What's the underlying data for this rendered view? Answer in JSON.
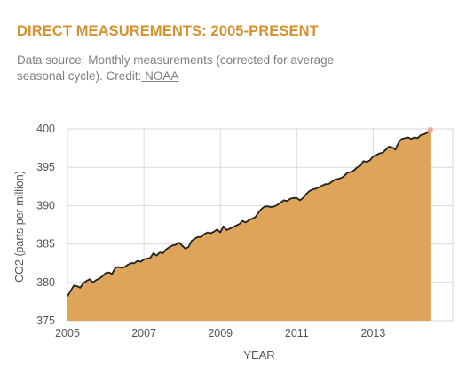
{
  "header": {
    "title": "DIRECT MEASUREMENTS: 2005-PRESENT",
    "subtitle_text": "Data source: Monthly measurements (corrected for average seasonal cycle). Credit:",
    "credit_link": " NOAA"
  },
  "colors": {
    "title": "#d4912e",
    "area_fill": "#dda45a",
    "line": "#222222",
    "grid": "#d9d9d9",
    "last_point": "#f2a0a0"
  },
  "chart_data": {
    "type": "area",
    "xlabel": "YEAR",
    "ylabel": "CO2 (parts per million)",
    "xlim": [
      2005.0,
      2015.08
    ],
    "ylim": [
      375,
      400
    ],
    "x_ticks": [
      2005,
      2007,
      2009,
      2011,
      2013
    ],
    "y_ticks": [
      375,
      380,
      385,
      390,
      395,
      400
    ],
    "grid": true,
    "series": [
      {
        "x_start": 2005.0,
        "x_step": 0.0833,
        "values": [
          378.2,
          378.9,
          379.6,
          379.5,
          379.3,
          379.9,
          380.2,
          380.4,
          380.0,
          380.3,
          380.5,
          380.8,
          381.2,
          381.3,
          381.1,
          381.9,
          382.0,
          381.9,
          382.0,
          382.3,
          382.5,
          382.5,
          382.8,
          382.7,
          383.0,
          383.1,
          383.2,
          383.8,
          383.5,
          383.9,
          383.8,
          384.3,
          384.6,
          384.8,
          384.9,
          385.2,
          384.8,
          384.4,
          384.6,
          385.4,
          385.7,
          385.9,
          385.9,
          386.3,
          386.5,
          386.4,
          386.6,
          386.9,
          386.5,
          387.3,
          386.8,
          387.0,
          387.2,
          387.4,
          387.6,
          388.0,
          387.8,
          388.1,
          388.3,
          388.5,
          389.1,
          389.6,
          389.9,
          389.9,
          389.8,
          389.9,
          390.1,
          390.4,
          390.7,
          390.6,
          390.9,
          391.0,
          391.0,
          390.7,
          391.0,
          391.5,
          391.9,
          392.1,
          392.2,
          392.4,
          392.6,
          392.8,
          392.8,
          393.1,
          393.4,
          393.5,
          393.6,
          393.9,
          394.3,
          394.4,
          394.6,
          395.0,
          395.2,
          395.8,
          395.7,
          395.9,
          396.4,
          396.6,
          396.8,
          396.9,
          397.3,
          397.7,
          397.6,
          397.3,
          398.2,
          398.7,
          398.8,
          398.9,
          398.7,
          398.9,
          398.8,
          399.2,
          399.3,
          399.5,
          399.9
        ]
      }
    ]
  }
}
